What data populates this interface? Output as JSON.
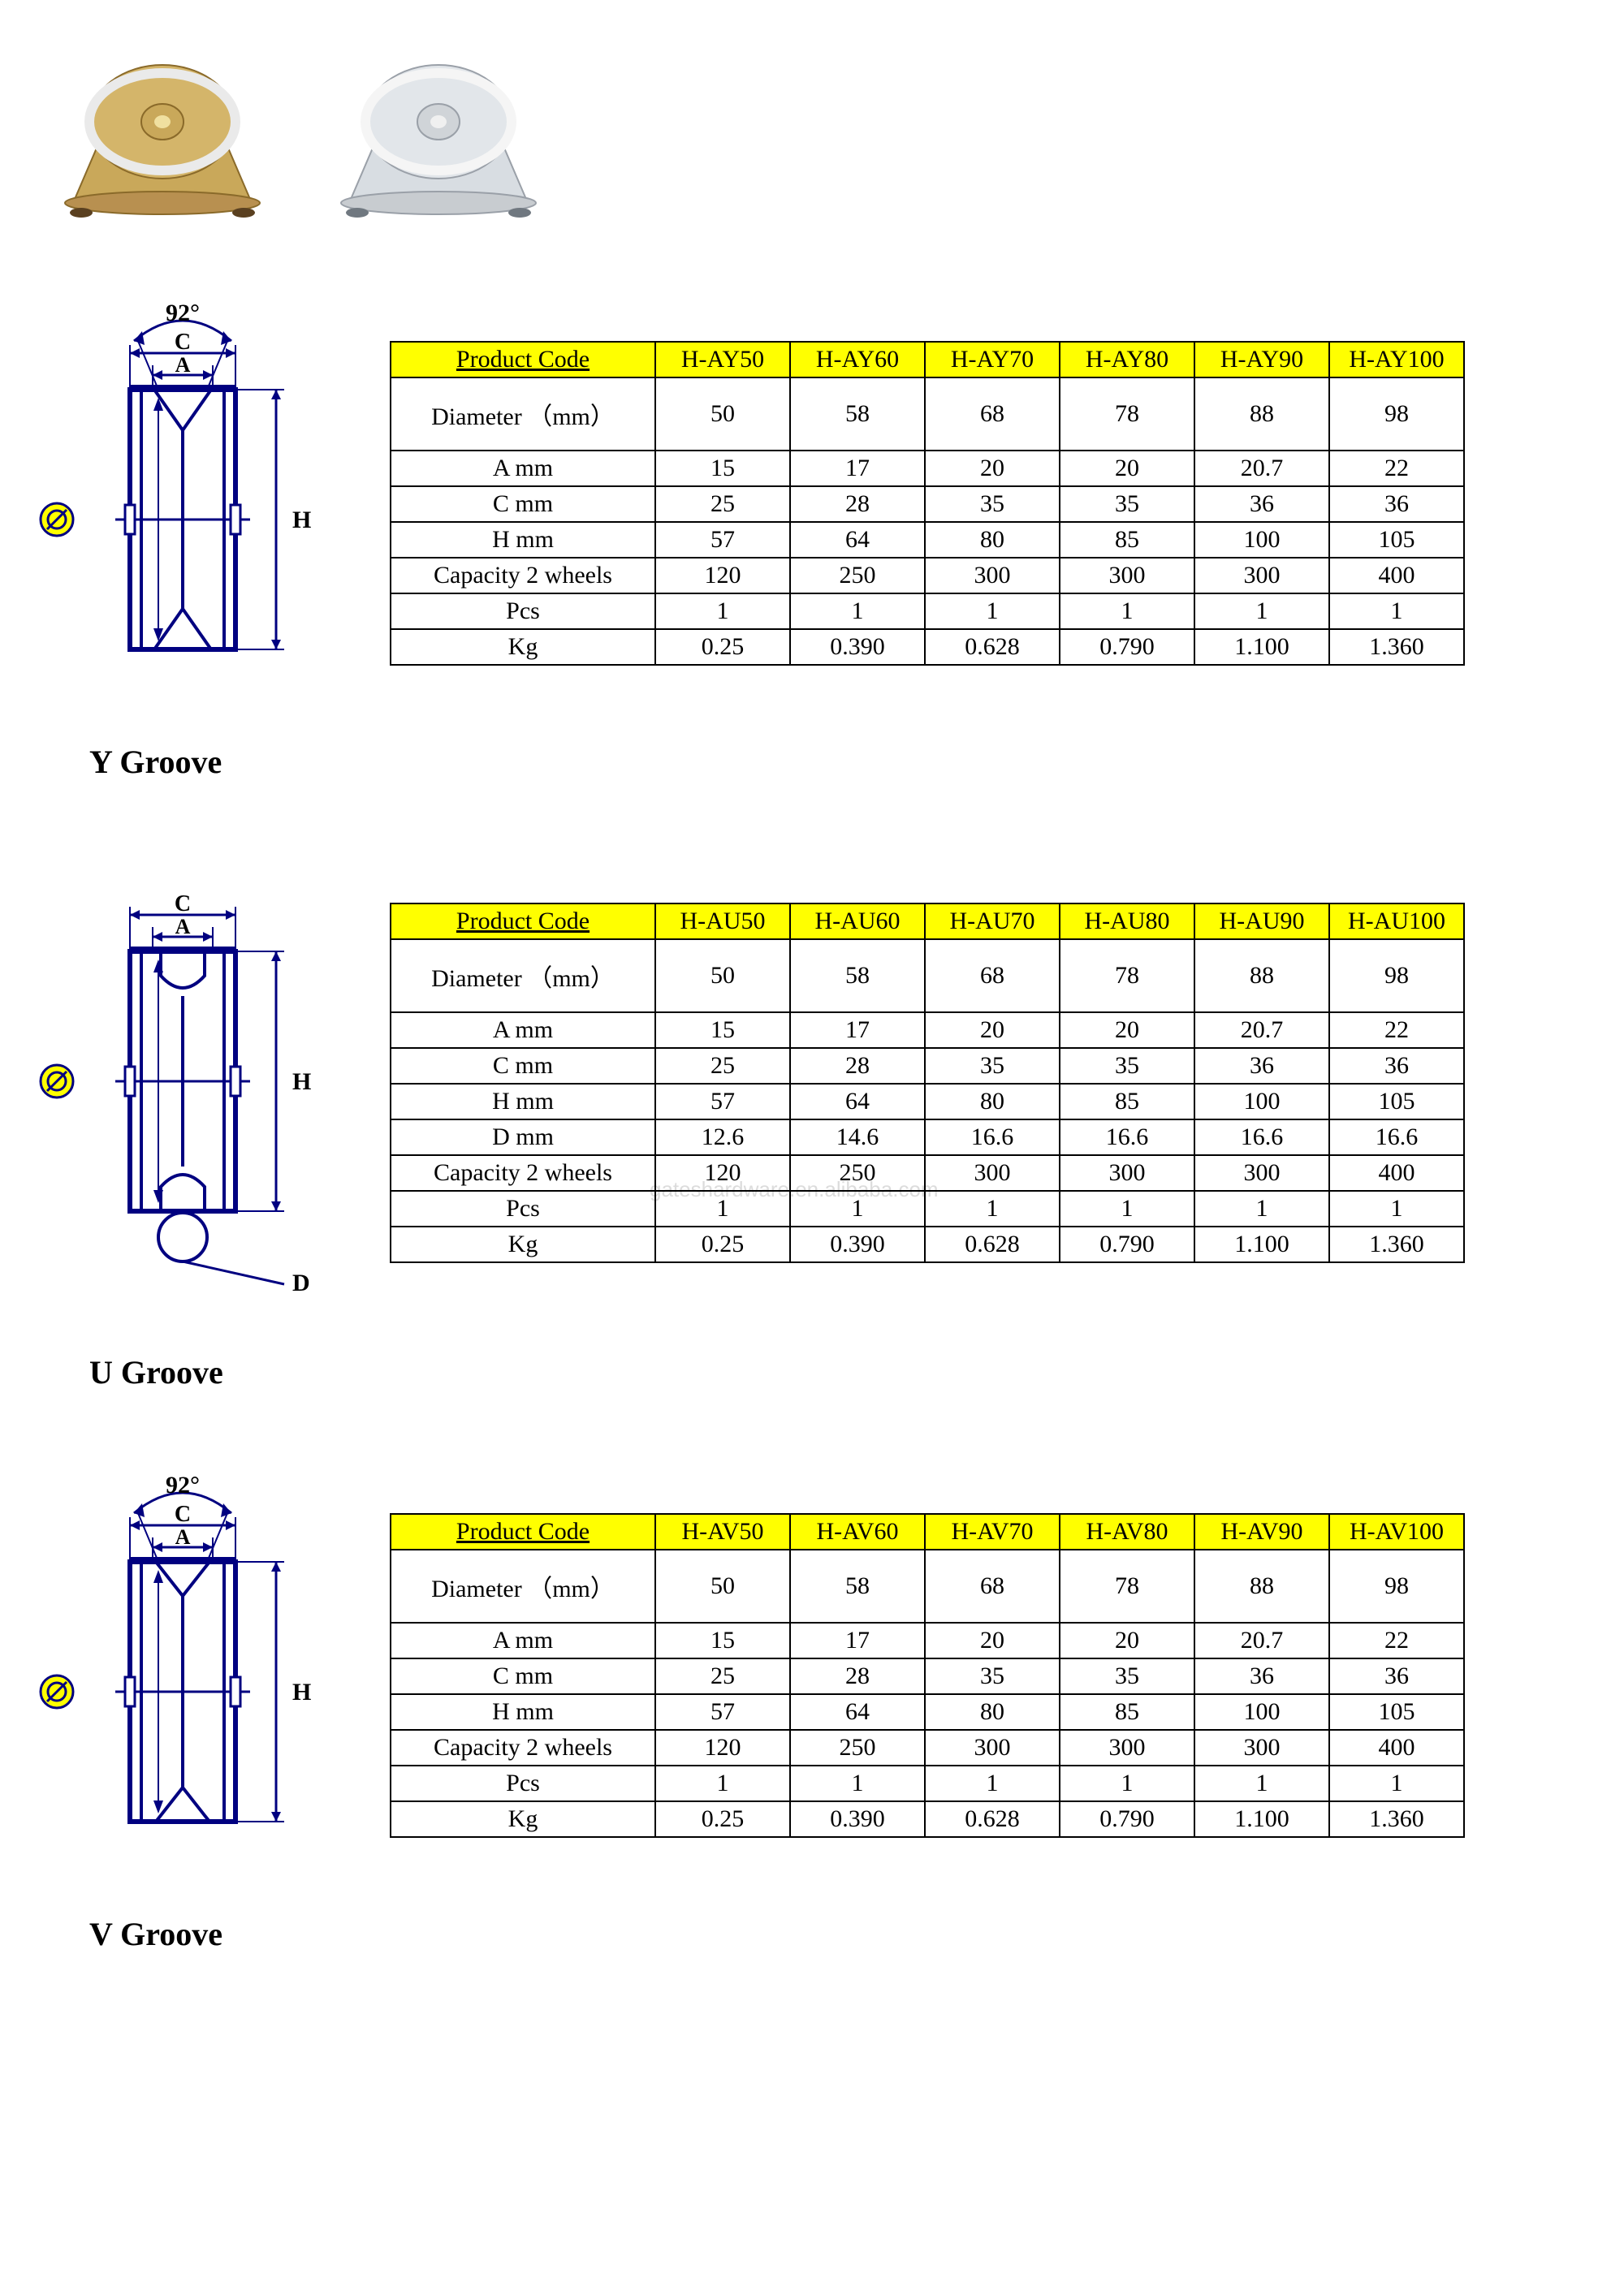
{
  "styling": {
    "header_bg": "#ffff00",
    "border_color": "#000000",
    "diagram_stroke": "#000080",
    "diagram_symbol_bg": "#ffff00",
    "font_family": "Times New Roman",
    "label_fontsize": 40,
    "table_fontsize": 30
  },
  "watermark": "gateshardware.en.alibaba.com",
  "photos": [
    {
      "name": "brass-wheel-bracket",
      "tint": "#b89050"
    },
    {
      "name": "steel-wheel-bracket",
      "tint": "#c8ccd0"
    }
  ],
  "sections": [
    {
      "id": "y",
      "label": "Y Groove",
      "angle": "92°",
      "dims": [
        "C",
        "A",
        "H"
      ],
      "groove_type": "Y",
      "table": {
        "header": [
          "Product Code",
          "H-AY50",
          "H-AY60",
          "H-AY70",
          "H-AY80",
          "H-AY90",
          "H-AY100"
        ],
        "rows": [
          {
            "label": "Diameter （mm）",
            "tall": true,
            "cells": [
              "50",
              "58",
              "68",
              "78",
              "88",
              "98"
            ]
          },
          {
            "label": "A mm",
            "cells": [
              "15",
              "17",
              "20",
              "20",
              "20.7",
              "22"
            ]
          },
          {
            "label": "C mm",
            "cells": [
              "25",
              "28",
              "35",
              "35",
              "36",
              "36"
            ]
          },
          {
            "label": "H mm",
            "cells": [
              "57",
              "64",
              "80",
              "85",
              "100",
              "105"
            ]
          },
          {
            "label": "Capacity 2 wheels",
            "cells": [
              "120",
              "250",
              "300",
              "300",
              "300",
              "400"
            ]
          },
          {
            "label": "Pcs",
            "cells": [
              "1",
              "1",
              "1",
              "1",
              "1",
              "1"
            ]
          },
          {
            "label": "Kg",
            "cells": [
              "0.25",
              "0.390",
              "0.628",
              "0.790",
              "1.100",
              "1.360"
            ]
          }
        ]
      }
    },
    {
      "id": "u",
      "label": "U Groove",
      "dims": [
        "C",
        "A",
        "H",
        "D"
      ],
      "groove_type": "U",
      "table": {
        "header": [
          "Product Code",
          "H-AU50",
          "H-AU60",
          "H-AU70",
          "H-AU80",
          "H-AU90",
          "H-AU100"
        ],
        "rows": [
          {
            "label": "Diameter （mm）",
            "tall": true,
            "cells": [
              "50",
              "58",
              "68",
              "78",
              "88",
              "98"
            ]
          },
          {
            "label": "A mm",
            "cells": [
              "15",
              "17",
              "20",
              "20",
              "20.7",
              "22"
            ]
          },
          {
            "label": "C mm",
            "cells": [
              "25",
              "28",
              "35",
              "35",
              "36",
              "36"
            ]
          },
          {
            "label": "H mm",
            "cells": [
              "57",
              "64",
              "80",
              "85",
              "100",
              "105"
            ]
          },
          {
            "label": "D mm",
            "cells": [
              "12.6",
              "14.6",
              "16.6",
              "16.6",
              "16.6",
              "16.6"
            ]
          },
          {
            "label": "Capacity 2 wheels",
            "cells": [
              "120",
              "250",
              "300",
              "300",
              "300",
              "400"
            ]
          },
          {
            "label": "Pcs",
            "cells": [
              "1",
              "1",
              "1",
              "1",
              "1",
              "1"
            ]
          },
          {
            "label": "Kg",
            "cells": [
              "0.25",
              "0.390",
              "0.628",
              "0.790",
              "1.100",
              "1.360"
            ]
          }
        ]
      }
    },
    {
      "id": "v",
      "label": "V Groove",
      "angle": "92°",
      "dims": [
        "C",
        "A",
        "H"
      ],
      "groove_type": "V",
      "table": {
        "header": [
          "Product Code",
          "H-AV50",
          "H-AV60",
          "H-AV70",
          "H-AV80",
          "H-AV90",
          "H-AV100"
        ],
        "rows": [
          {
            "label": "Diameter （mm）",
            "tall": true,
            "cells": [
              "50",
              "58",
              "68",
              "78",
              "88",
              "98"
            ]
          },
          {
            "label": "A mm",
            "cells": [
              "15",
              "17",
              "20",
              "20",
              "20.7",
              "22"
            ]
          },
          {
            "label": "C mm",
            "cells": [
              "25",
              "28",
              "35",
              "35",
              "36",
              "36"
            ]
          },
          {
            "label": "H mm",
            "cells": [
              "57",
              "64",
              "80",
              "85",
              "100",
              "105"
            ]
          },
          {
            "label": "Capacity 2 wheels",
            "cells": [
              "120",
              "250",
              "300",
              "300",
              "300",
              "400"
            ]
          },
          {
            "label": "Pcs",
            "cells": [
              "1",
              "1",
              "1",
              "1",
              "1",
              "1"
            ]
          },
          {
            "label": "Kg",
            "cells": [
              "0.25",
              "0.390",
              "0.628",
              "0.790",
              "1.100",
              "1.360"
            ]
          }
        ]
      }
    }
  ]
}
